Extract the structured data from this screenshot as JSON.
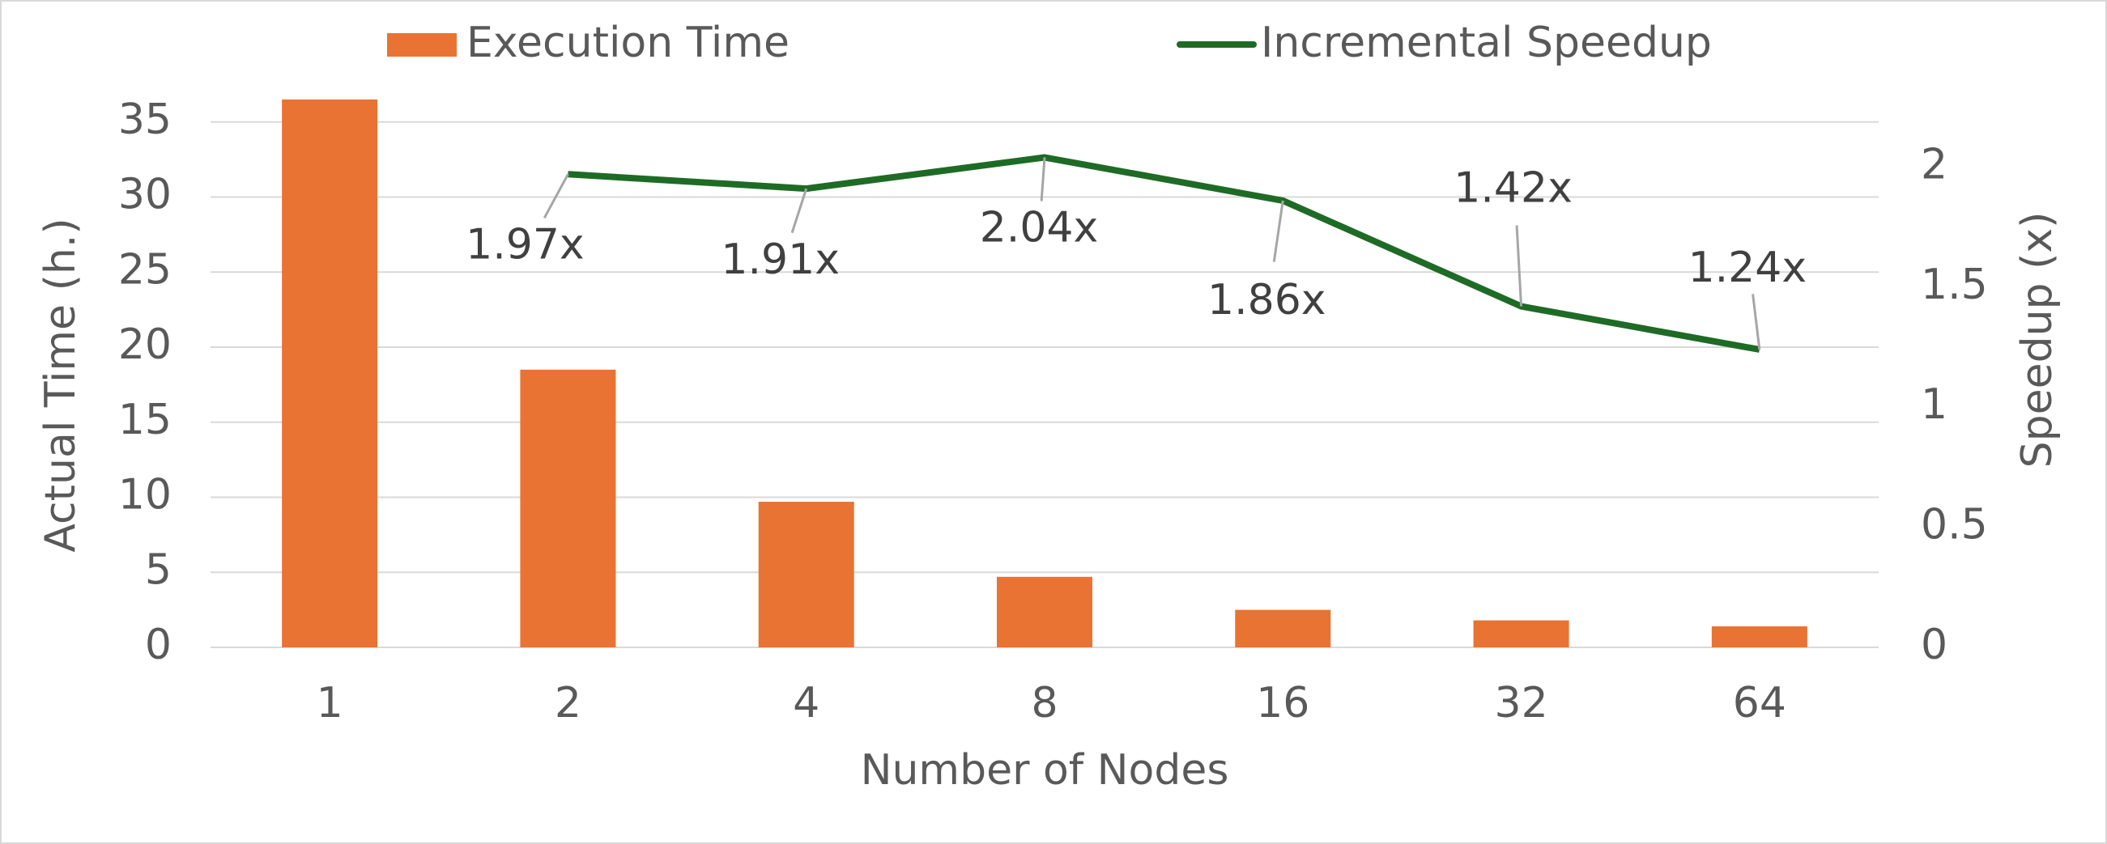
{
  "chart_data": {
    "type": "bar",
    "categories": [
      "1",
      "2",
      "4",
      "8",
      "16",
      "32",
      "64"
    ],
    "xlabel": "Number of Nodes",
    "ylabel": "Actual Time (h.)",
    "y2label": "Speedup (x)",
    "ylim": [
      0,
      40
    ],
    "yticks": [
      0,
      5,
      10,
      15,
      20,
      25,
      30,
      35
    ],
    "y2lim": [
      0,
      2.5
    ],
    "y2ticks": [
      0,
      0.5,
      1,
      1.5,
      2
    ],
    "grid": true,
    "legend": "top",
    "series": [
      {
        "name": "Execution Time",
        "type": "bar",
        "color": "#e97333",
        "values": [
          36.5,
          18.5,
          9.7,
          4.7,
          2.5,
          1.8,
          1.4
        ]
      },
      {
        "name": "Incremental Speedup",
        "type": "line",
        "axis": "y2",
        "color": "#1e6b26",
        "values": [
          null,
          1.97,
          1.91,
          2.04,
          1.86,
          1.42,
          1.24
        ],
        "value_labels": [
          null,
          "1.97x",
          "1.91x",
          "2.04x",
          "1.86x",
          "1.42x",
          "1.24x"
        ]
      }
    ]
  }
}
